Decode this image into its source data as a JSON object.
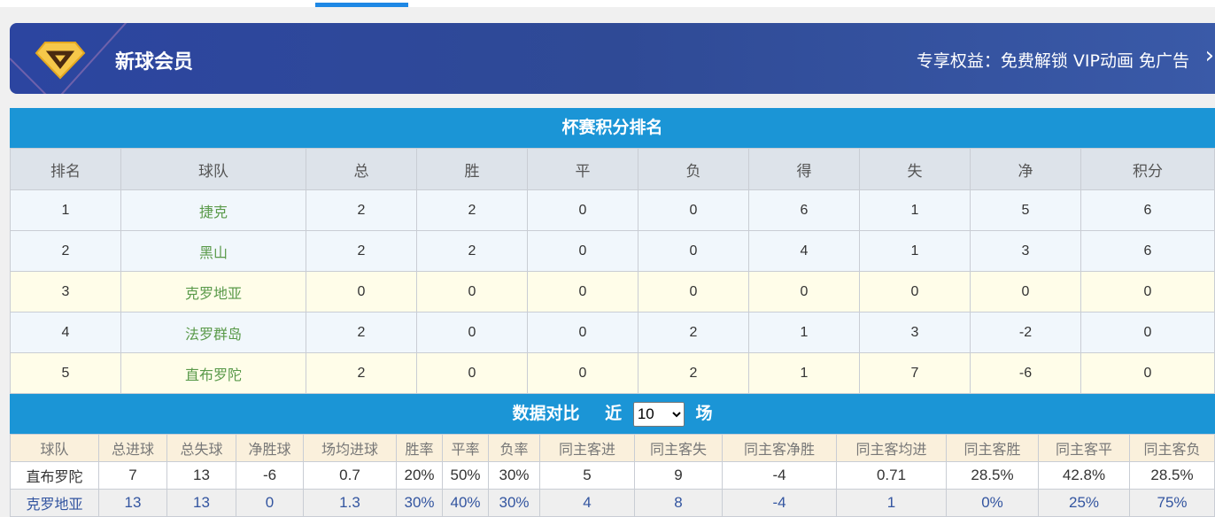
{
  "banner": {
    "title": "新球会员",
    "perk": "专享权益：免费解锁 VIP动画 免广告",
    "icon": "diamond-v-icon"
  },
  "standings": {
    "title": "杯赛积分排名",
    "headers": [
      "排名",
      "球队",
      "总",
      "胜",
      "平",
      "负",
      "得",
      "失",
      "净",
      "积分"
    ],
    "rows": [
      [
        "1",
        "捷克",
        "2",
        "2",
        "0",
        "0",
        "6",
        "1",
        "5",
        "6"
      ],
      [
        "2",
        "黑山",
        "2",
        "2",
        "0",
        "0",
        "4",
        "1",
        "3",
        "6"
      ],
      [
        "3",
        "克罗地亚",
        "0",
        "0",
        "0",
        "0",
        "0",
        "0",
        "0",
        "0"
      ],
      [
        "4",
        "法罗群岛",
        "2",
        "0",
        "0",
        "2",
        "1",
        "3",
        "-2",
        "0"
      ],
      [
        "5",
        "直布罗陀",
        "2",
        "0",
        "0",
        "2",
        "1",
        "7",
        "-6",
        "0"
      ]
    ]
  },
  "compare": {
    "title": "数据对比",
    "prefix": "近",
    "suffix": "场",
    "selected": "10",
    "headers": [
      "球队",
      "总进球",
      "总失球",
      "净胜球",
      "场均进球",
      "胜率",
      "平率",
      "负率",
      "同主客进",
      "同主客失",
      "同主客净胜",
      "同主客均进",
      "同主客胜",
      "同主客平",
      "同主客负"
    ],
    "rows": [
      [
        "直布罗陀",
        "7",
        "13",
        "-6",
        "0.7",
        "20%",
        "50%",
        "30%",
        "5",
        "9",
        "-4",
        "0.71",
        "28.5%",
        "42.8%",
        "28.5%"
      ],
      [
        "克罗地亚",
        "13",
        "13",
        "0",
        "1.3",
        "30%",
        "40%",
        "30%",
        "4",
        "8",
        "-4",
        "1",
        "0%",
        "25%",
        "75%"
      ]
    ]
  },
  "colors": {
    "bar": "#1b95d6",
    "banner": "#2f4a96",
    "team": "#5a9a4a"
  }
}
